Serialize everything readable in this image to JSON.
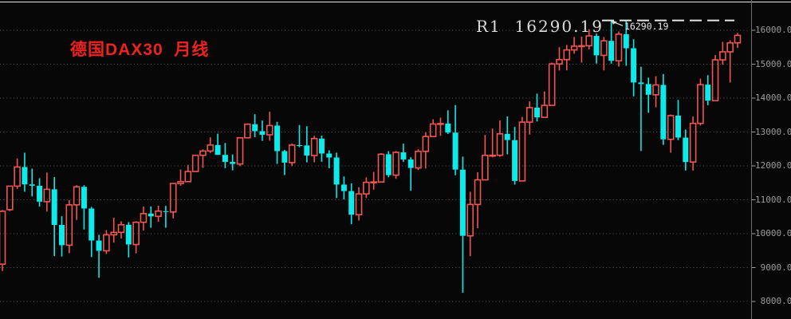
{
  "title": {
    "text": "德国DAX30  月线",
    "color": "#ee2222"
  },
  "resistance": {
    "label": "R1  16290.19",
    "annotation_label": "16290.19",
    "value": 16290.19,
    "line_color": "#e6e6e6"
  },
  "y_axis": {
    "labels": [
      "16000.00",
      "15000.00",
      "14000.00",
      "13000.00",
      "12000.00",
      "11000.00",
      "10000.00",
      "9000.00",
      "8000.00"
    ],
    "values": [
      16000,
      15000,
      14000,
      13000,
      12000,
      11000,
      10000,
      9000,
      8000
    ],
    "label_color": "#9c9c9c",
    "axis_color": "#6f6f6f",
    "grid_color": "#5a5a5a"
  },
  "chart_data": {
    "type": "candlestick",
    "title": "德国DAX30 月线",
    "instrument": "德国DAX30",
    "timeframe": "月线",
    "up_color": "#f05550",
    "down_color": "#0ceaea",
    "background": "#070707",
    "grid": "dotted-horizontal",
    "legend": "none",
    "x_axis_labels": "none",
    "ylim": [
      7480,
      16900
    ],
    "y_ticks": [
      8000,
      9000,
      10000,
      11000,
      12000,
      13000,
      14000,
      15000,
      16000
    ],
    "resistance_level": 16290.19,
    "candles_ohlc": [
      [
        9100,
        10700,
        8900,
        10660
      ],
      [
        10709,
        11410,
        10663,
        11402
      ],
      [
        11402,
        12219,
        11320,
        11966
      ],
      [
        11966,
        12390,
        11237,
        11454
      ],
      [
        11454,
        11920,
        11100,
        11414
      ],
      [
        11414,
        11636,
        10798,
        10945
      ],
      [
        10945,
        11802,
        10653,
        11309
      ],
      [
        11309,
        11670,
        9338,
        10259
      ],
      [
        10259,
        10514,
        9325,
        9660
      ],
      [
        9660,
        10989,
        9423,
        10850
      ],
      [
        10850,
        11431,
        10405,
        11382
      ],
      [
        11382,
        11430,
        10123,
        10743
      ],
      [
        10743,
        10790,
        9310,
        9798
      ],
      [
        9798,
        9967,
        8699,
        9495
      ],
      [
        9495,
        10104,
        9400,
        9966
      ],
      [
        9966,
        10474,
        9737,
        10039
      ],
      [
        10039,
        10365,
        9857,
        10263
      ],
      [
        10263,
        10341,
        9298,
        9680
      ],
      [
        9680,
        10366,
        9418,
        10337
      ],
      [
        10337,
        10802,
        10092,
        10593
      ],
      [
        10593,
        10803,
        10175,
        10511
      ],
      [
        10511,
        10827,
        10349,
        10665
      ],
      [
        10665,
        10820,
        10174,
        10640
      ],
      [
        10640,
        11481,
        10452,
        11481
      ],
      [
        11481,
        11893,
        11415,
        11535
      ],
      [
        11535,
        12031,
        11518,
        11834
      ],
      [
        11834,
        12313,
        11830,
        12313
      ],
      [
        12313,
        12486,
        11941,
        12438
      ],
      [
        12438,
        12842,
        12380,
        12615
      ],
      [
        12615,
        12951,
        12319,
        12325
      ],
      [
        12325,
        12676,
        11934,
        12118
      ],
      [
        12118,
        12337,
        11869,
        12056
      ],
      [
        12056,
        12829,
        11993,
        12829
      ],
      [
        12829,
        13255,
        12810,
        13230
      ],
      [
        13230,
        13526,
        12848,
        13024
      ],
      [
        13024,
        13338,
        12738,
        12918
      ],
      [
        12918,
        13597,
        12745,
        13189
      ],
      [
        13189,
        13301,
        12060,
        12436
      ],
      [
        12436,
        12473,
        11727,
        12097
      ],
      [
        12097,
        12657,
        11992,
        12612
      ],
      [
        12612,
        13204,
        12550,
        12604
      ],
      [
        12604,
        13170,
        12104,
        12306
      ],
      [
        12306,
        12886,
        12106,
        12806
      ],
      [
        12806,
        12892,
        12120,
        12364
      ],
      [
        12364,
        12461,
        11930,
        12247
      ],
      [
        12247,
        12389,
        11051,
        11448
      ],
      [
        11448,
        11689,
        11009,
        11257
      ],
      [
        11257,
        11486,
        10279,
        10559
      ],
      [
        10559,
        11371,
        10387,
        11173
      ],
      [
        11173,
        11658,
        11051,
        11515
      ],
      [
        11515,
        11823,
        11299,
        11526
      ],
      [
        11526,
        12376,
        11526,
        12344
      ],
      [
        12344,
        12436,
        11662,
        11727
      ],
      [
        11727,
        12439,
        11620,
        12399
      ],
      [
        12399,
        12656,
        12116,
        12189
      ],
      [
        12189,
        12254,
        11266,
        11939
      ],
      [
        11939,
        12494,
        11878,
        12428
      ],
      [
        12428,
        12986,
        11926,
        12867
      ],
      [
        12867,
        13374,
        12850,
        13236
      ],
      [
        13236,
        13425,
        12886,
        13249
      ],
      [
        13249,
        13640,
        12940,
        12982
      ],
      [
        12982,
        13795,
        11724,
        11890
      ],
      [
        11890,
        12273,
        8255,
        9936
      ],
      [
        9936,
        11235,
        9337,
        10862
      ],
      [
        10862,
        11813,
        10160,
        11587
      ],
      [
        11587,
        12913,
        11587,
        12311
      ],
      [
        12311,
        13100,
        12254,
        12313
      ],
      [
        12313,
        13340,
        12270,
        12945
      ],
      [
        12945,
        13460,
        12342,
        12761
      ],
      [
        12761,
        13149,
        11450,
        11556
      ],
      [
        11556,
        13445,
        11556,
        13291
      ],
      [
        13291,
        13904,
        12923,
        13719
      ],
      [
        13719,
        14132,
        13310,
        13432
      ],
      [
        13432,
        14197,
        13432,
        13786
      ],
      [
        13786,
        15047,
        13786,
        15008
      ],
      [
        15008,
        15501,
        14813,
        15136
      ],
      [
        15136,
        15569,
        14819,
        15421
      ],
      [
        15421,
        15803,
        15309,
        15531
      ],
      [
        15531,
        15811,
        15049,
        15544
      ],
      [
        15544,
        16030,
        15437,
        15835
      ],
      [
        15835,
        15903,
        15020,
        15261
      ],
      [
        15261,
        15801,
        14819,
        15689
      ],
      [
        15689,
        16290,
        15016,
        15100
      ],
      [
        15100,
        15965,
        14930,
        15885
      ],
      [
        15885,
        16285,
        14953,
        15471
      ],
      [
        15471,
        15737,
        14053,
        14461
      ],
      [
        14461,
        14925,
        12439,
        14415
      ],
      [
        14415,
        14603,
        13566,
        14098
      ],
      [
        14098,
        14646,
        13727,
        14388
      ],
      [
        14388,
        14709,
        12619,
        12784
      ],
      [
        12784,
        13516,
        12390,
        13484
      ],
      [
        13484,
        13948,
        12758,
        12835
      ],
      [
        12835,
        13072,
        11863,
        12114
      ],
      [
        12114,
        13460,
        11862,
        13254
      ],
      [
        13254,
        14572,
        13192,
        14397
      ],
      [
        14397,
        14676,
        13791,
        13924
      ],
      [
        13924,
        15270,
        13923,
        15128
      ],
      [
        15128,
        15658,
        14983,
        15365
      ],
      [
        15365,
        15706,
        14458,
        15629
      ],
      [
        15629,
        15920,
        15480,
        15850
      ]
    ]
  }
}
